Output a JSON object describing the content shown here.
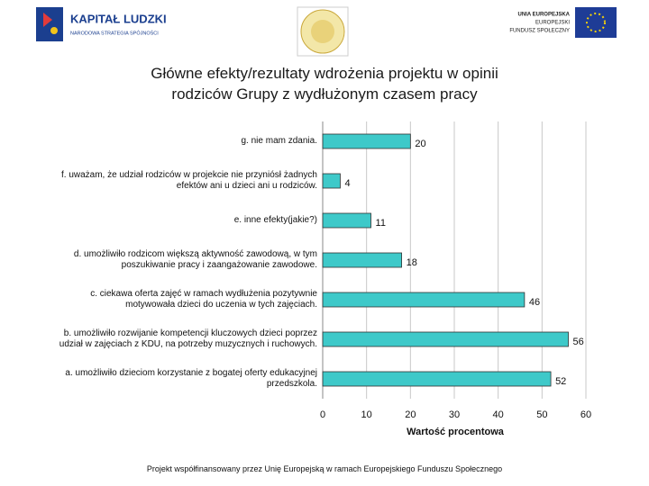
{
  "header": {
    "logo_left_title": "KAPITAŁ LUDZKI",
    "logo_left_subtitle": "NARODOWA STRATEGIA SPÓJNOŚCI",
    "logo_right_lines": [
      "UNIA EUROPEJSKA",
      "EUROPEJSKI",
      "FUNDUSZ SPOŁECZNY"
    ]
  },
  "chart_data": {
    "type": "bar",
    "orientation": "horizontal",
    "title": "Główne efekty/rezultaty wdrożenia projektu w opinii rodziców Grupy z wydłużonym czasem pracy",
    "x_label": "Wartość procentowa",
    "categories": [
      "g. nie mam zdania.",
      "f. uważam, że udział rodziców w projekcie nie przyniósł żadnych efektów ani u dzieci ani u rodziców.",
      "e. inne efekty(jakie?)",
      "d. umożliwiło rodzicom większą aktywność zawodową, w tym poszukiwanie pracy i zaangażowanie zawodowe.",
      "c. ciekawa oferta zajęć w ramach wydłużenia pozytywnie motywowała dzieci do uczenia w tych zajęciach.",
      "b. umożliwiło rozwijanie kompetencji kluczowych dzieci poprzez udział w zajęciach z KDU, na potrzeby muzycznych i ruchowych.",
      "a. umożliwiło dzieciom korzystanie z bogatej oferty edukacyjnej przedszkola."
    ],
    "values": [
      20,
      4,
      11,
      18,
      46,
      56,
      52
    ],
    "color": "#3ec9c9",
    "xlim": [
      0,
      60
    ],
    "xticks": [
      0,
      10,
      20,
      30,
      40,
      50,
      60
    ],
    "grid": true
  },
  "footer": "Projekt współfinansowany przez Unię Europejską w ramach Europejskiego Funduszu Społecznego"
}
